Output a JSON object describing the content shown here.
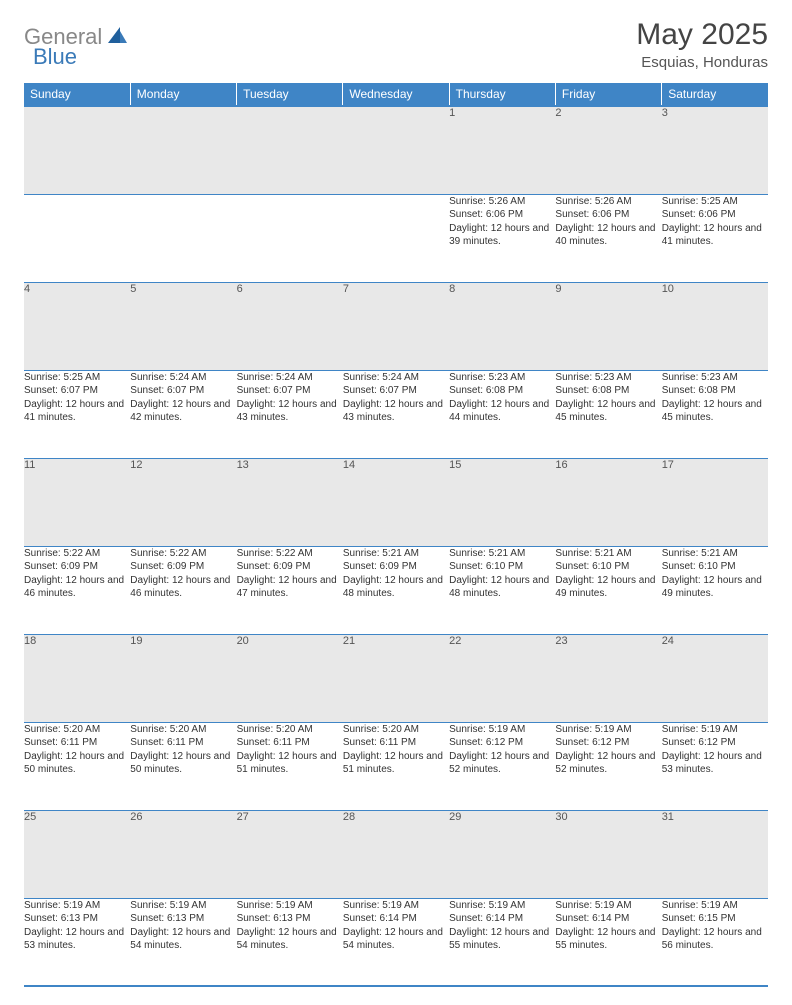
{
  "brand": {
    "general": "General",
    "blue": "Blue"
  },
  "title": "May 2025",
  "location": "Esquias, Honduras",
  "style": {
    "header_bg": "#3f85c6",
    "daynum_bg": "#e8e8e8",
    "border_color": "#3f85c6",
    "text_color": "#333333",
    "title_color": "#444444",
    "logo_gray": "#888888",
    "logo_blue": "#3a7ab8",
    "page_bg": "#ffffff",
    "columns": 7,
    "col_width_pct": 14.28,
    "title_fontsize": 30,
    "location_fontsize": 15,
    "header_fontsize": 12,
    "daynum_fontsize": 11,
    "body_fontsize": 10
  },
  "weekdays": [
    "Sunday",
    "Monday",
    "Tuesday",
    "Wednesday",
    "Thursday",
    "Friday",
    "Saturday"
  ],
  "weeks": [
    [
      null,
      null,
      null,
      null,
      {
        "n": "1",
        "sr": "5:26 AM",
        "ss": "6:06 PM",
        "dl": "12 hours and 39 minutes."
      },
      {
        "n": "2",
        "sr": "5:26 AM",
        "ss": "6:06 PM",
        "dl": "12 hours and 40 minutes."
      },
      {
        "n": "3",
        "sr": "5:25 AM",
        "ss": "6:06 PM",
        "dl": "12 hours and 41 minutes."
      }
    ],
    [
      {
        "n": "4",
        "sr": "5:25 AM",
        "ss": "6:07 PM",
        "dl": "12 hours and 41 minutes."
      },
      {
        "n": "5",
        "sr": "5:24 AM",
        "ss": "6:07 PM",
        "dl": "12 hours and 42 minutes."
      },
      {
        "n": "6",
        "sr": "5:24 AM",
        "ss": "6:07 PM",
        "dl": "12 hours and 43 minutes."
      },
      {
        "n": "7",
        "sr": "5:24 AM",
        "ss": "6:07 PM",
        "dl": "12 hours and 43 minutes."
      },
      {
        "n": "8",
        "sr": "5:23 AM",
        "ss": "6:08 PM",
        "dl": "12 hours and 44 minutes."
      },
      {
        "n": "9",
        "sr": "5:23 AM",
        "ss": "6:08 PM",
        "dl": "12 hours and 45 minutes."
      },
      {
        "n": "10",
        "sr": "5:23 AM",
        "ss": "6:08 PM",
        "dl": "12 hours and 45 minutes."
      }
    ],
    [
      {
        "n": "11",
        "sr": "5:22 AM",
        "ss": "6:09 PM",
        "dl": "12 hours and 46 minutes."
      },
      {
        "n": "12",
        "sr": "5:22 AM",
        "ss": "6:09 PM",
        "dl": "12 hours and 46 minutes."
      },
      {
        "n": "13",
        "sr": "5:22 AM",
        "ss": "6:09 PM",
        "dl": "12 hours and 47 minutes."
      },
      {
        "n": "14",
        "sr": "5:21 AM",
        "ss": "6:09 PM",
        "dl": "12 hours and 48 minutes."
      },
      {
        "n": "15",
        "sr": "5:21 AM",
        "ss": "6:10 PM",
        "dl": "12 hours and 48 minutes."
      },
      {
        "n": "16",
        "sr": "5:21 AM",
        "ss": "6:10 PM",
        "dl": "12 hours and 49 minutes."
      },
      {
        "n": "17",
        "sr": "5:21 AM",
        "ss": "6:10 PM",
        "dl": "12 hours and 49 minutes."
      }
    ],
    [
      {
        "n": "18",
        "sr": "5:20 AM",
        "ss": "6:11 PM",
        "dl": "12 hours and 50 minutes."
      },
      {
        "n": "19",
        "sr": "5:20 AM",
        "ss": "6:11 PM",
        "dl": "12 hours and 50 minutes."
      },
      {
        "n": "20",
        "sr": "5:20 AM",
        "ss": "6:11 PM",
        "dl": "12 hours and 51 minutes."
      },
      {
        "n": "21",
        "sr": "5:20 AM",
        "ss": "6:11 PM",
        "dl": "12 hours and 51 minutes."
      },
      {
        "n": "22",
        "sr": "5:19 AM",
        "ss": "6:12 PM",
        "dl": "12 hours and 52 minutes."
      },
      {
        "n": "23",
        "sr": "5:19 AM",
        "ss": "6:12 PM",
        "dl": "12 hours and 52 minutes."
      },
      {
        "n": "24",
        "sr": "5:19 AM",
        "ss": "6:12 PM",
        "dl": "12 hours and 53 minutes."
      }
    ],
    [
      {
        "n": "25",
        "sr": "5:19 AM",
        "ss": "6:13 PM",
        "dl": "12 hours and 53 minutes."
      },
      {
        "n": "26",
        "sr": "5:19 AM",
        "ss": "6:13 PM",
        "dl": "12 hours and 54 minutes."
      },
      {
        "n": "27",
        "sr": "5:19 AM",
        "ss": "6:13 PM",
        "dl": "12 hours and 54 minutes."
      },
      {
        "n": "28",
        "sr": "5:19 AM",
        "ss": "6:14 PM",
        "dl": "12 hours and 54 minutes."
      },
      {
        "n": "29",
        "sr": "5:19 AM",
        "ss": "6:14 PM",
        "dl": "12 hours and 55 minutes."
      },
      {
        "n": "30",
        "sr": "5:19 AM",
        "ss": "6:14 PM",
        "dl": "12 hours and 55 minutes."
      },
      {
        "n": "31",
        "sr": "5:19 AM",
        "ss": "6:15 PM",
        "dl": "12 hours and 56 minutes."
      }
    ]
  ],
  "labels": {
    "sunrise": "Sunrise:",
    "sunset": "Sunset:",
    "daylight": "Daylight:"
  }
}
